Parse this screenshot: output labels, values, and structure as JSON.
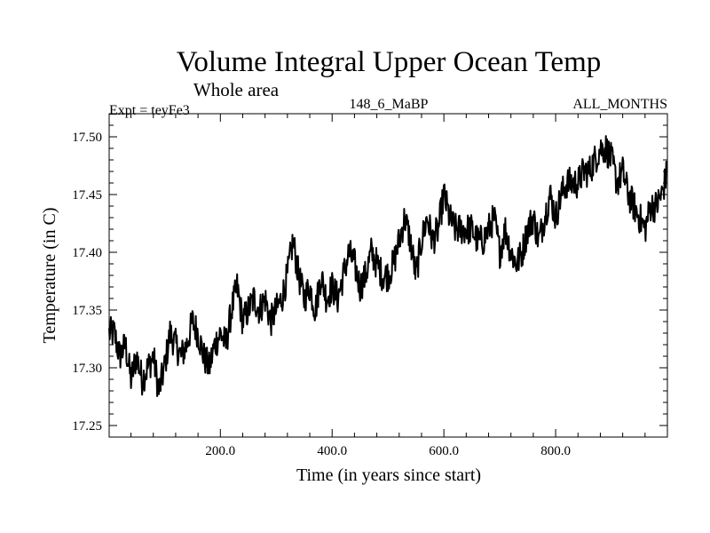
{
  "chart_data": {
    "type": "line",
    "title": "Volume Integral Upper Ocean Temp",
    "subtitle": "Whole area",
    "expt_label": "Expt = teyFe3",
    "center_label": "148_6_MaBP",
    "right_label": "ALL_MONTHS",
    "xlabel": "Time (in years since start)",
    "ylabel": "Temperature (in C)",
    "xlim": [
      1,
      1000
    ],
    "ylim": [
      17.24,
      17.52
    ],
    "xticks": [
      200,
      400,
      600,
      800
    ],
    "xtick_labels": [
      "200.0",
      "400.0",
      "600.0",
      "800.0"
    ],
    "yticks": [
      17.25,
      17.3,
      17.35,
      17.4,
      17.45,
      17.5
    ],
    "ytick_labels": [
      "17.25",
      "17.30",
      "17.35",
      "17.40",
      "17.45",
      "17.50"
    ],
    "series": [
      {
        "name": "Volume integral upper ocean temperature",
        "x": [
          1,
          10,
          20,
          30,
          40,
          50,
          60,
          70,
          80,
          90,
          100,
          110,
          120,
          130,
          140,
          150,
          160,
          170,
          180,
          190,
          200,
          210,
          220,
          230,
          240,
          250,
          260,
          270,
          280,
          290,
          300,
          310,
          320,
          330,
          340,
          350,
          360,
          370,
          380,
          390,
          400,
          410,
          420,
          430,
          440,
          450,
          460,
          470,
          480,
          490,
          500,
          510,
          520,
          530,
          540,
          550,
          560,
          570,
          580,
          590,
          600,
          610,
          620,
          630,
          640,
          650,
          660,
          670,
          680,
          690,
          700,
          710,
          720,
          730,
          740,
          750,
          760,
          770,
          780,
          790,
          800,
          810,
          820,
          830,
          840,
          850,
          860,
          870,
          880,
          890,
          900,
          910,
          920,
          930,
          940,
          950,
          960,
          970,
          980,
          990,
          1000
        ],
        "values": [
          17.33,
          17.33,
          17.31,
          17.32,
          17.29,
          17.31,
          17.29,
          17.3,
          17.31,
          17.28,
          17.3,
          17.33,
          17.32,
          17.31,
          17.32,
          17.34,
          17.33,
          17.31,
          17.3,
          17.32,
          17.33,
          17.32,
          17.35,
          17.37,
          17.34,
          17.35,
          17.36,
          17.35,
          17.36,
          17.34,
          17.35,
          17.36,
          17.38,
          17.41,
          17.38,
          17.36,
          17.37,
          17.35,
          17.38,
          17.36,
          17.37,
          17.36,
          17.38,
          17.4,
          17.39,
          17.37,
          17.38,
          17.4,
          17.39,
          17.38,
          17.38,
          17.39,
          17.41,
          17.43,
          17.41,
          17.38,
          17.41,
          17.43,
          17.41,
          17.42,
          17.45,
          17.43,
          17.42,
          17.42,
          17.42,
          17.42,
          17.41,
          17.41,
          17.42,
          17.43,
          17.4,
          17.42,
          17.4,
          17.39,
          17.4,
          17.42,
          17.43,
          17.41,
          17.43,
          17.45,
          17.43,
          17.45,
          17.46,
          17.46,
          17.46,
          17.47,
          17.47,
          17.48,
          17.49,
          17.49,
          17.48,
          17.46,
          17.47,
          17.45,
          17.44,
          17.43,
          17.42,
          17.44,
          17.44,
          17.45,
          17.47
        ]
      }
    ]
  }
}
